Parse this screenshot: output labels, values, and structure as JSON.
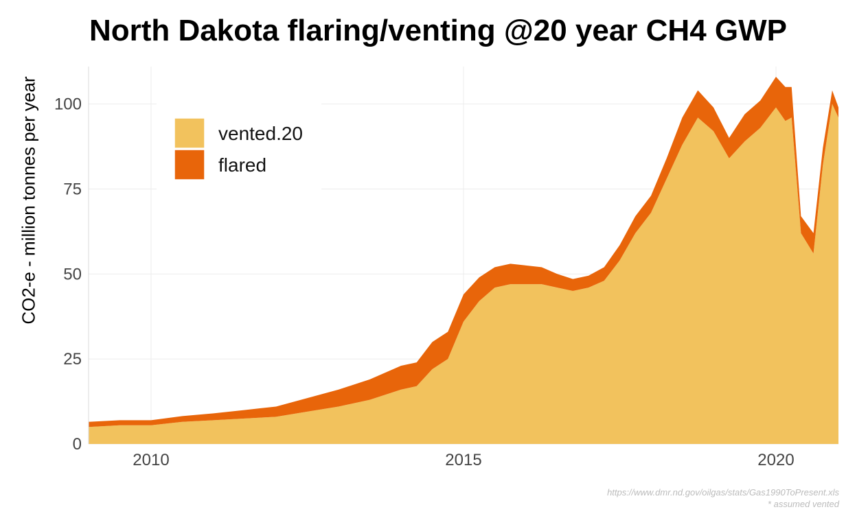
{
  "chart_data": {
    "type": "area",
    "stacked": true,
    "title": "North Dakota flaring/venting @20 year CH4 GWP",
    "xlabel": "",
    "ylabel": "CO2-e - million tonnes per year",
    "xlim": [
      2009.0,
      2021.0
    ],
    "ylim": [
      0,
      111
    ],
    "x_ticks": [
      2010,
      2015,
      2020
    ],
    "y_ticks": [
      0,
      25,
      50,
      75,
      100
    ],
    "grid": true,
    "legend_position": "top-left",
    "x": [
      2009.0,
      2009.5,
      2010.0,
      2010.5,
      2011.0,
      2011.5,
      2012.0,
      2012.5,
      2013.0,
      2013.5,
      2014.0,
      2014.25,
      2014.5,
      2014.75,
      2015.0,
      2015.25,
      2015.5,
      2015.75,
      2016.0,
      2016.25,
      2016.5,
      2016.75,
      2017.0,
      2017.25,
      2017.5,
      2017.75,
      2018.0,
      2018.25,
      2018.5,
      2018.75,
      2019.0,
      2019.25,
      2019.5,
      2019.75,
      2020.0,
      2020.15,
      2020.25,
      2020.4,
      2020.6,
      2020.75,
      2020.9,
      2021.0
    ],
    "series": [
      {
        "name": "vented.20",
        "color": "#F2C25D",
        "values": [
          5,
          5.5,
          5.5,
          6.5,
          7,
          7.5,
          8,
          9.5,
          11,
          13,
          16,
          17,
          22,
          25,
          36,
          42,
          46,
          47,
          47,
          47,
          46,
          45,
          46,
          48,
          54,
          62,
          68,
          78,
          88,
          96,
          92,
          84,
          89,
          93,
          99,
          95,
          96,
          62,
          56,
          82,
          100,
          96
        ]
      },
      {
        "name": "flared",
        "color": "#E8650A",
        "values": [
          1.5,
          1.5,
          1.5,
          1.7,
          2,
          2.5,
          3,
          4,
          5,
          6,
          7,
          7,
          8,
          8,
          8,
          7,
          6,
          6,
          5.5,
          5,
          4,
          3.5,
          3.5,
          4,
          4.5,
          5,
          5,
          6,
          8,
          8,
          7,
          6,
          8,
          8,
          9,
          10,
          9,
          5,
          6,
          5,
          4,
          3
        ]
      }
    ]
  },
  "caption": {
    "source": "https://www.dmr.nd.gov/oilgas/stats/Gas1990ToPresent.xls",
    "note": "* assumed vented"
  }
}
